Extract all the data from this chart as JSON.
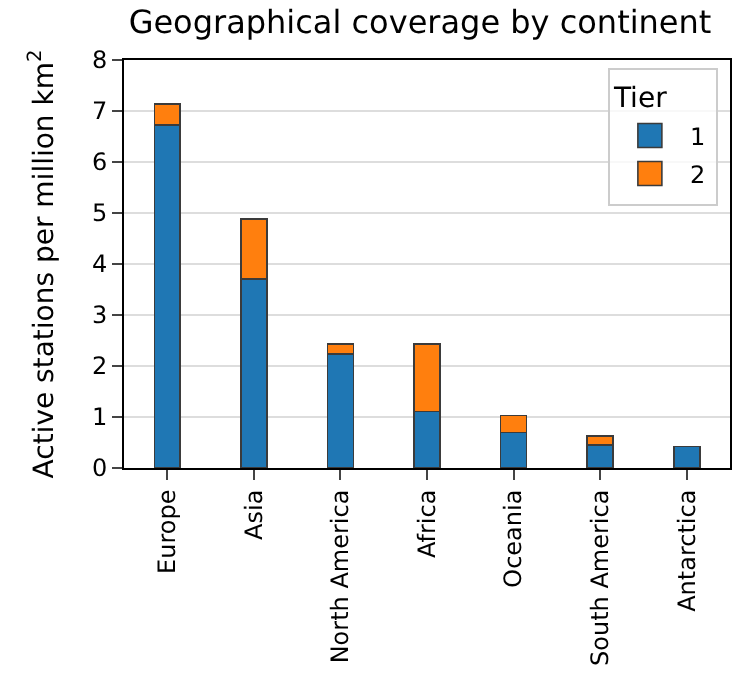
{
  "chart_data": {
    "type": "bar",
    "title": "Geographical coverage by continent",
    "ylabel": "Active stations per million km$^{2}$",
    "legend_title": "Tier",
    "categories": [
      "Europe",
      "Asia",
      "North America",
      "Africa",
      "Oceania",
      "South America",
      "Antarctica"
    ],
    "stacked": true,
    "series": [
      {
        "name": "1",
        "color": "#1f77b4",
        "values": [
          6.72,
          3.71,
          2.24,
          1.11,
          0.7,
          0.45,
          0.42
        ]
      },
      {
        "name": "2",
        "color": "#ff7f0e",
        "values": [
          0.42,
          1.17,
          0.19,
          1.32,
          0.33,
          0.18,
          0
        ]
      }
    ],
    "ylim": [
      0,
      8
    ],
    "yticks": [
      0,
      1,
      2,
      3,
      4,
      5,
      6,
      7,
      8
    ],
    "grid": "y",
    "legend": "top right"
  }
}
